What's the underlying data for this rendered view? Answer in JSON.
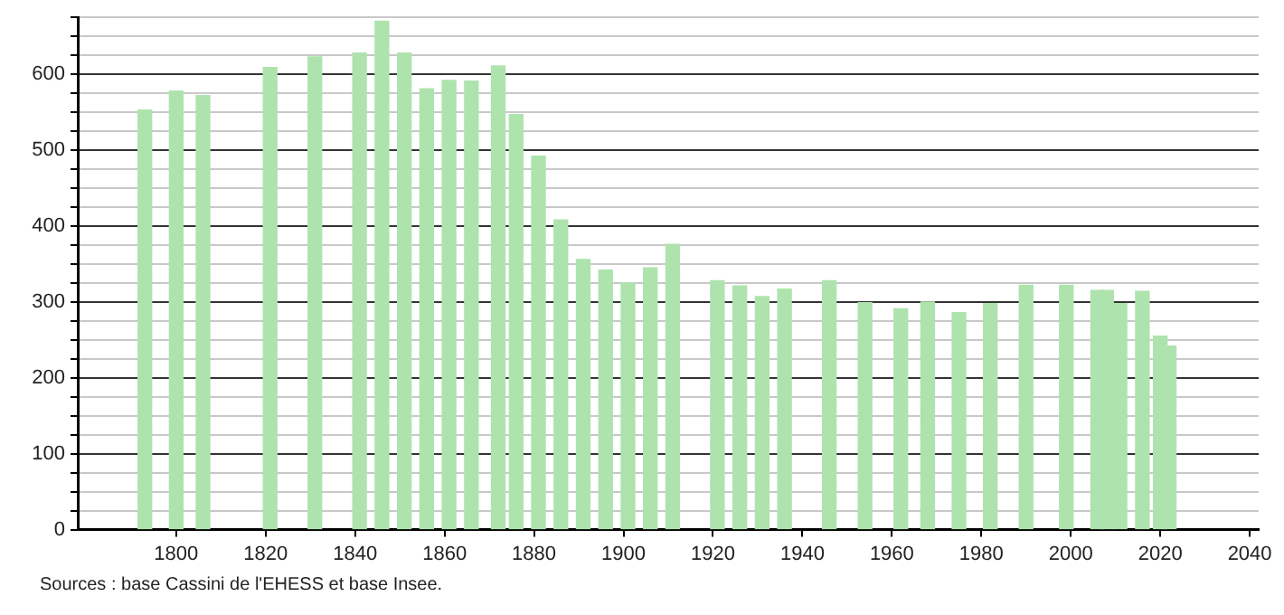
{
  "chart_data": {
    "type": "bar",
    "x": [
      1793,
      1800,
      1806,
      1821,
      1831,
      1841,
      1846,
      1851,
      1856,
      1861,
      1866,
      1872,
      1876,
      1881,
      1886,
      1891,
      1896,
      1901,
      1906,
      1911,
      1921,
      1926,
      1931,
      1936,
      1946,
      1954,
      1962,
      1968,
      1975,
      1982,
      1990,
      1999,
      2006,
      2008,
      2011,
      2016,
      2020,
      2022
    ],
    "values": [
      553,
      578,
      572,
      609,
      623,
      628,
      670,
      628,
      581,
      592,
      591,
      611,
      547,
      492,
      408,
      356,
      342,
      325,
      345,
      376,
      328,
      321,
      307,
      317,
      328,
      299,
      291,
      300,
      286,
      298,
      322,
      322,
      315,
      315,
      298,
      314,
      255,
      242
    ],
    "color": "#aee3ae",
    "xlim": [
      1778,
      2042
    ],
    "xticks": [
      1800,
      1820,
      1840,
      1860,
      1880,
      1900,
      1920,
      1940,
      1960,
      1980,
      2000,
      2020,
      2040
    ],
    "ylim": [
      0,
      675
    ],
    "yticks": [
      0,
      {
        "value": 25,
        "label": null
      },
      {
        "value": 50,
        "label": null
      },
      {
        "value": 75,
        "label": null
      },
      100,
      {
        "value": 125,
        "label": null
      },
      {
        "value": 150,
        "label": null
      },
      {
        "value": 175,
        "label": null
      },
      200,
      {
        "value": 225,
        "label": null
      },
      {
        "value": 250,
        "label": null
      },
      {
        "value": 275,
        "label": null
      },
      300,
      {
        "value": 325,
        "label": null
      },
      {
        "value": 350,
        "label": null
      },
      {
        "value": 375,
        "label": null
      },
      400,
      {
        "value": 425,
        "label": null
      },
      {
        "value": 450,
        "label": null
      },
      {
        "value": 475,
        "label": null
      },
      500,
      {
        "value": 525,
        "label": null
      },
      {
        "value": 550,
        "label": null
      },
      {
        "value": 575,
        "label": null
      },
      600,
      {
        "value": 625,
        "label": null
      },
      {
        "value": 650,
        "label": null
      },
      {
        "value": 675,
        "label": null
      }
    ],
    "grid": "y",
    "annotations": [
      "Sources : base Cassini de l'EHESS et base Insee."
    ]
  }
}
